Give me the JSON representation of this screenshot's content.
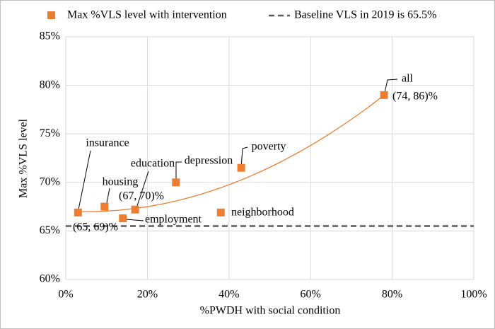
{
  "chart_data": {
    "type": "scatter",
    "x_label": "%PWDH with social condition",
    "y_label": "Max %VLS level",
    "series": [
      {
        "name": "Max %VLS level with intervention",
        "color": "#ED7D31",
        "point_labels": [
          "insurance",
          "housing",
          "employment",
          "education",
          "depression",
          "poverty",
          "neighborhood",
          "all"
        ],
        "range_labels": [
          "(65, 69)%",
          "(67, 70)%",
          null,
          null,
          null,
          null,
          null,
          "(74, 86)%"
        ],
        "x": [
          3,
          9.5,
          14,
          17,
          27,
          43,
          38,
          78
        ],
        "values": [
          66.9,
          67.5,
          66.3,
          67.2,
          70,
          71.5,
          66.9,
          79
        ]
      }
    ],
    "reference_line": {
      "name": "Baseline VLS in 2019 is 65.5%",
      "value": 65.5,
      "color": "#595959"
    },
    "trendline": "polynomial",
    "xlim": [
      0,
      100
    ],
    "xticks": [
      {
        "value": 0,
        "label": "0%"
      },
      {
        "value": 20,
        "label": "20%"
      },
      {
        "value": 40,
        "label": "40%"
      },
      {
        "value": 60,
        "label": "60%"
      },
      {
        "value": 80,
        "label": "80%"
      },
      {
        "value": 100,
        "label": "100%"
      }
    ],
    "ylim": [
      60,
      85
    ],
    "yticks": [
      {
        "value": 60,
        "label": "60%"
      },
      {
        "value": 65,
        "label": "65%"
      },
      {
        "value": 70,
        "label": "70%"
      },
      {
        "value": 75,
        "label": "75%"
      },
      {
        "value": 80,
        "label": "80%"
      },
      {
        "value": 85,
        "label": "85%"
      }
    ],
    "grid": true
  }
}
